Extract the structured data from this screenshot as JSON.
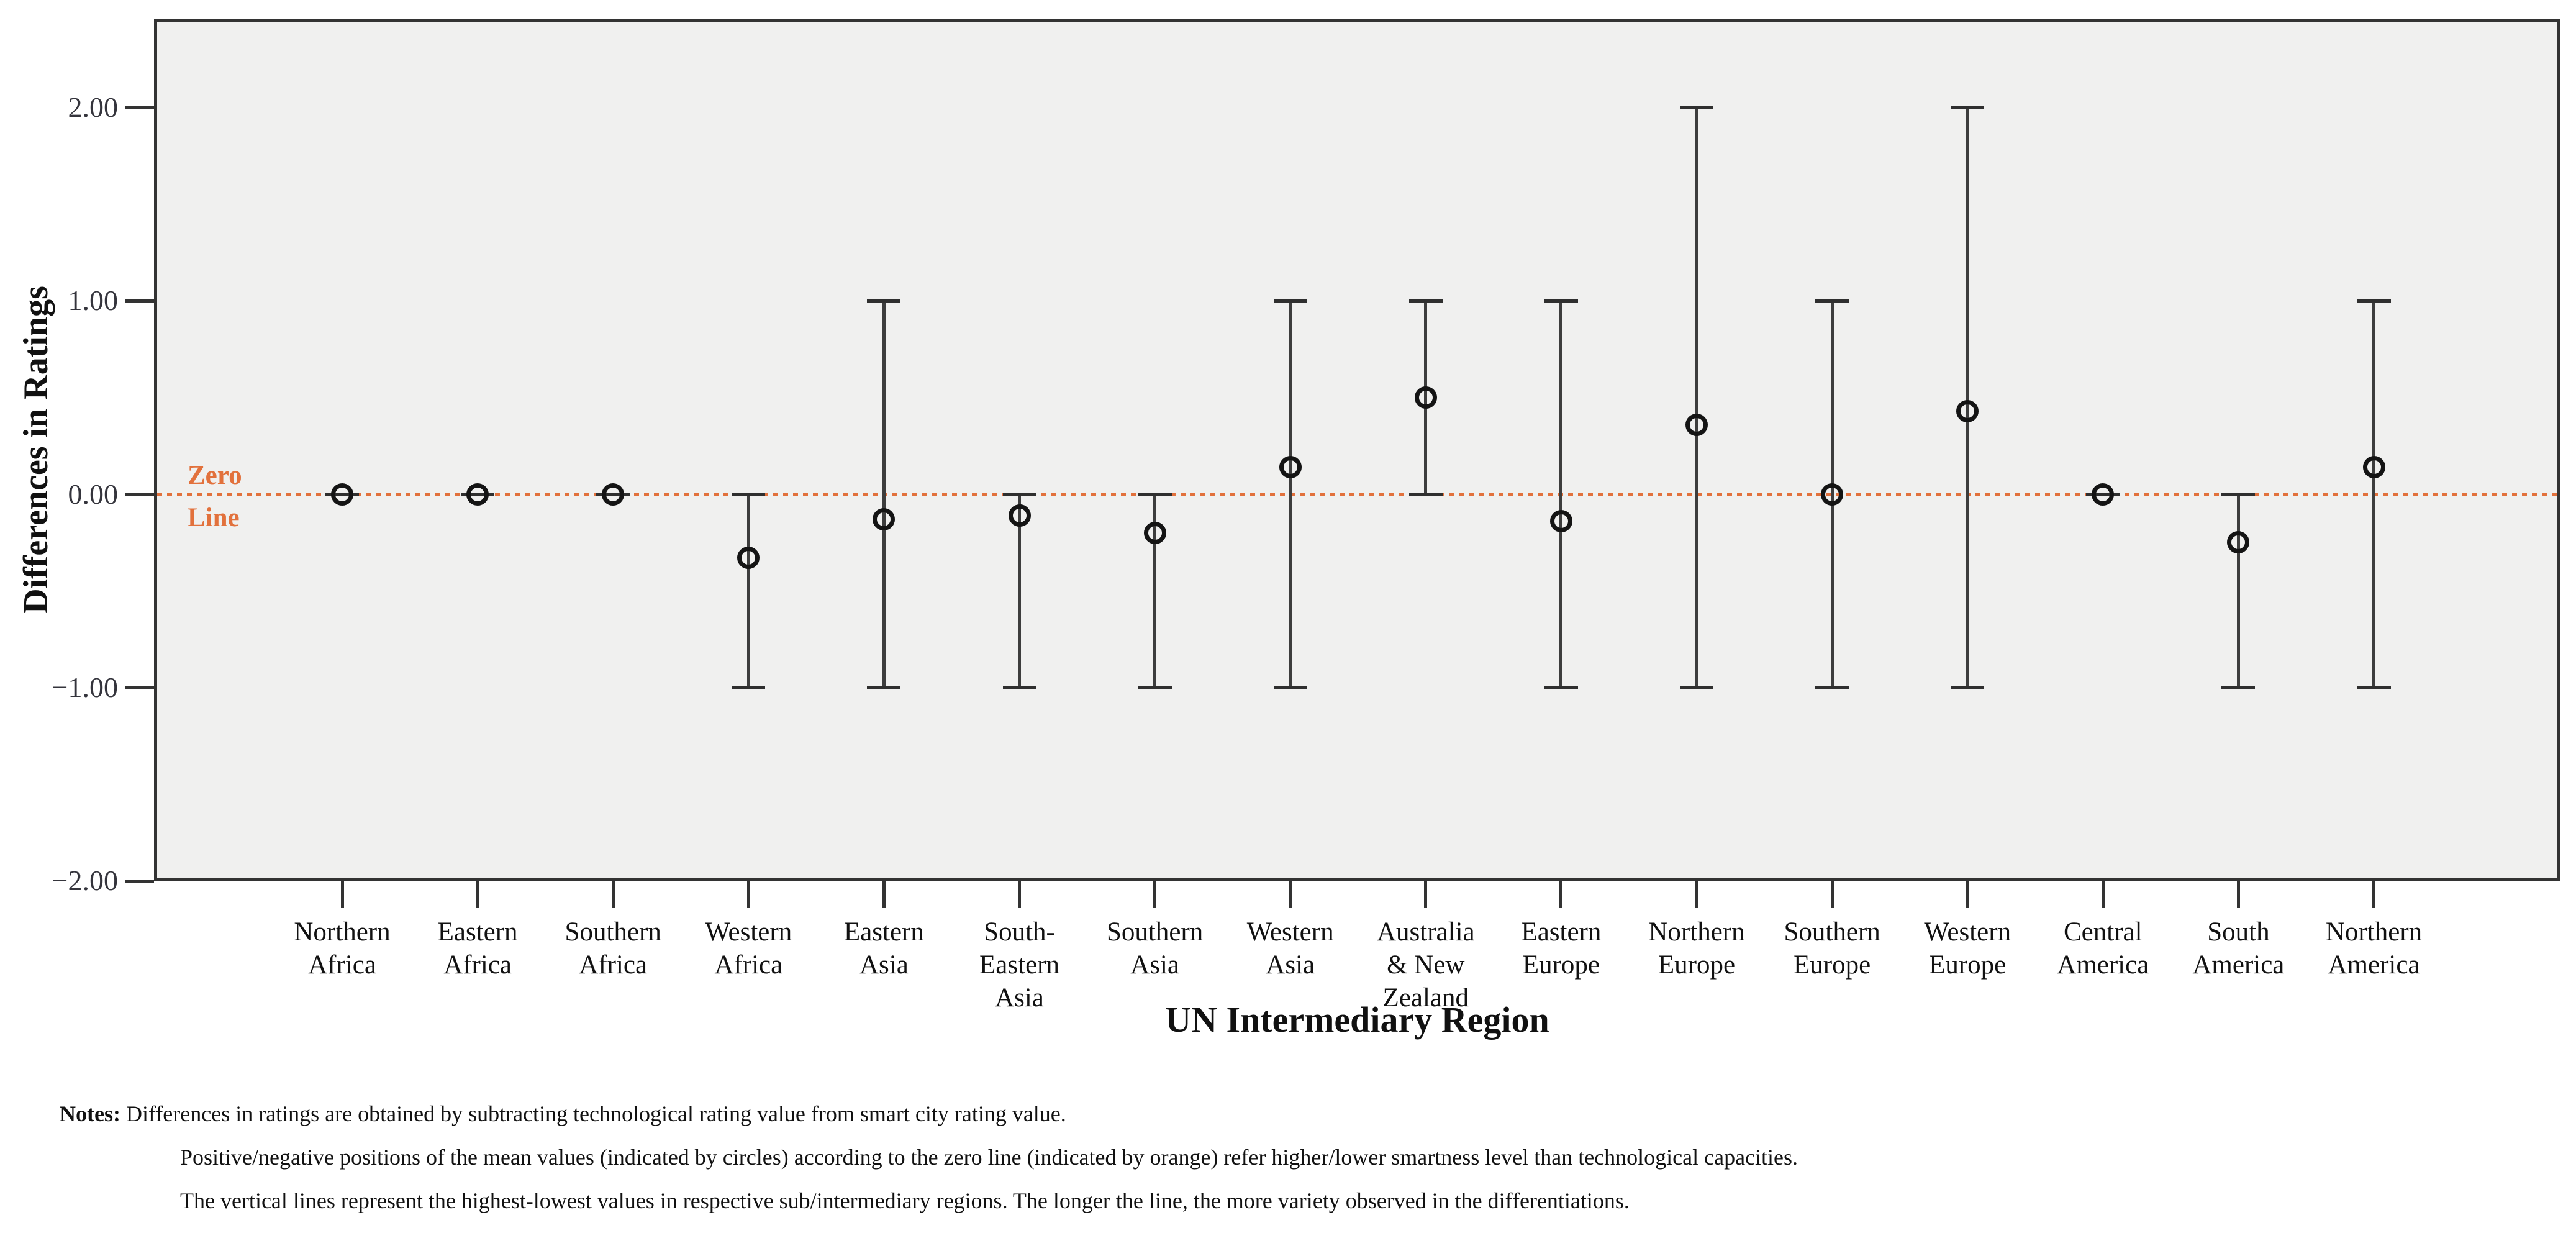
{
  "zero_label": {
    "line1": "Zero",
    "line2": "Line"
  },
  "notes": {
    "label": "Notes:",
    "lines": [
      "Differences in ratings are obtained by subtracting technological rating value from smart city rating value.",
      "Positive/negative positions of the mean values (indicated by circles) according to the zero line (indicated by orange) refer higher/lower smartness level than technological capacities.",
      "The vertical lines represent the highest-lowest values in respective sub/intermediary regions. The longer the line, the more variety observed in the differentiations."
    ]
  },
  "chart_data": {
    "type": "scatter",
    "subtype": "high-low-mean error bar chart",
    "title": "",
    "xlabel": "UN Intermediary Region",
    "ylabel": "Differences in Ratings",
    "categories": [
      "Northern Africa",
      "Eastern Africa",
      "Southern Africa",
      "Western Africa",
      "Eastern Asia",
      "South-Eastern Asia",
      "Southern Asia",
      "Western Asia",
      "Australia & New Zealand",
      "Eastern Europe",
      "Northern Europe",
      "Southern Europe",
      "Western Europe",
      "Central America",
      "South America",
      "Northern America"
    ],
    "category_label_lines": [
      [
        "Northern",
        "Africa"
      ],
      [
        "Eastern",
        "Africa"
      ],
      [
        "Southern",
        "Africa"
      ],
      [
        "Western",
        "Africa"
      ],
      [
        "Eastern",
        "Asia"
      ],
      [
        "South-",
        "Eastern",
        "Asia"
      ],
      [
        "Southern",
        "Asia"
      ],
      [
        "Western",
        "Asia"
      ],
      [
        "Australia",
        "& New",
        "Zealand"
      ],
      [
        "Eastern",
        "Europe"
      ],
      [
        "Northern",
        "Europe"
      ],
      [
        "Southern",
        "Europe"
      ],
      [
        "Western",
        "Europe"
      ],
      [
        "Central",
        "America"
      ],
      [
        "South",
        "America"
      ],
      [
        "Northern",
        "America"
      ]
    ],
    "series": [
      {
        "name": "mean",
        "marker": "open-circle",
        "values": [
          0.0,
          0.0,
          0.0,
          -0.33,
          -0.13,
          -0.11,
          -0.2,
          0.14,
          0.5,
          -0.14,
          0.36,
          0.0,
          0.43,
          0.0,
          -0.25,
          0.14
        ]
      },
      {
        "name": "min",
        "values": [
          0.0,
          0.0,
          0.0,
          -1.0,
          -1.0,
          -1.0,
          -1.0,
          -1.0,
          0.0,
          -1.0,
          -1.0,
          -1.0,
          -1.0,
          0.0,
          -1.0,
          -1.0
        ]
      },
      {
        "name": "max",
        "values": [
          0.0,
          0.0,
          0.0,
          0.0,
          1.0,
          0.0,
          0.0,
          1.0,
          1.0,
          1.0,
          2.0,
          1.0,
          2.0,
          0.0,
          0.0,
          1.0
        ]
      }
    ],
    "ylim": [
      -2.0,
      2.46
    ],
    "y_ticks": {
      "values": [
        2,
        1,
        0,
        -1,
        -2
      ],
      "labels": [
        "2.00",
        "1.00",
        "0.00",
        "−1.00",
        "−2.00"
      ]
    },
    "zero_line": {
      "value": 0,
      "style": "dotted",
      "color": "#e2713c",
      "label": "Zero Line"
    },
    "grid": false,
    "legend": "none",
    "plot_background": "#f0f0ef",
    "marker_color": "#141414",
    "bar_color": "#3d3d3d"
  }
}
